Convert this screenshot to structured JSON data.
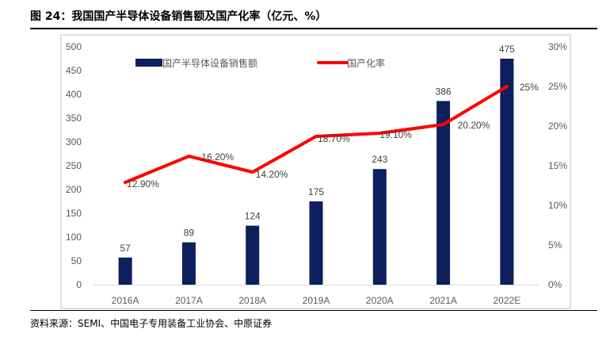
{
  "figure": {
    "title": "图 24：我国国产半导体设备销售额及国产化率（亿元、%）",
    "source": "资料来源：SEMI、中国电子专用装备工业协会、中原证券"
  },
  "chart_data": {
    "type": "bar+line",
    "categories": [
      "2016A",
      "2017A",
      "2018A",
      "2019A",
      "2020A",
      "2021A",
      "2022E"
    ],
    "series": [
      {
        "name": "国产半导体设备销售额",
        "type": "bar",
        "axis": "left",
        "values": [
          57,
          89,
          124,
          175,
          243,
          386,
          475
        ],
        "labels": [
          "57",
          "89",
          "124",
          "175",
          "243",
          "386",
          "475"
        ]
      },
      {
        "name": "国产化率",
        "type": "line",
        "axis": "right",
        "values": [
          12.9,
          16.2,
          14.2,
          18.7,
          19.1,
          20.2,
          25
        ],
        "labels": [
          "12.90%",
          "16.20%",
          "14.20%",
          "18.70%",
          "19.10%",
          "20.20%",
          "25%"
        ]
      }
    ],
    "y_left": {
      "lim": [
        0,
        500
      ],
      "ticks": [
        0,
        50,
        100,
        150,
        200,
        250,
        300,
        350,
        400,
        450,
        500
      ],
      "tick_labels": [
        "0",
        "50",
        "100",
        "150",
        "200",
        "250",
        "300",
        "350",
        "400",
        "450",
        "500"
      ]
    },
    "y_right": {
      "lim": [
        0,
        30
      ],
      "ticks": [
        0,
        5,
        10,
        15,
        20,
        25,
        30
      ],
      "tick_labels": [
        "0%",
        "5%",
        "10%",
        "15%",
        "20%",
        "25%",
        "30%"
      ]
    },
    "grid": false,
    "legend_placement": "top-left",
    "colors": {
      "bar": "#0d1f5c",
      "line": "#ff0000",
      "axis": "#d9d9d9",
      "frame": "#bfbfbf"
    }
  }
}
